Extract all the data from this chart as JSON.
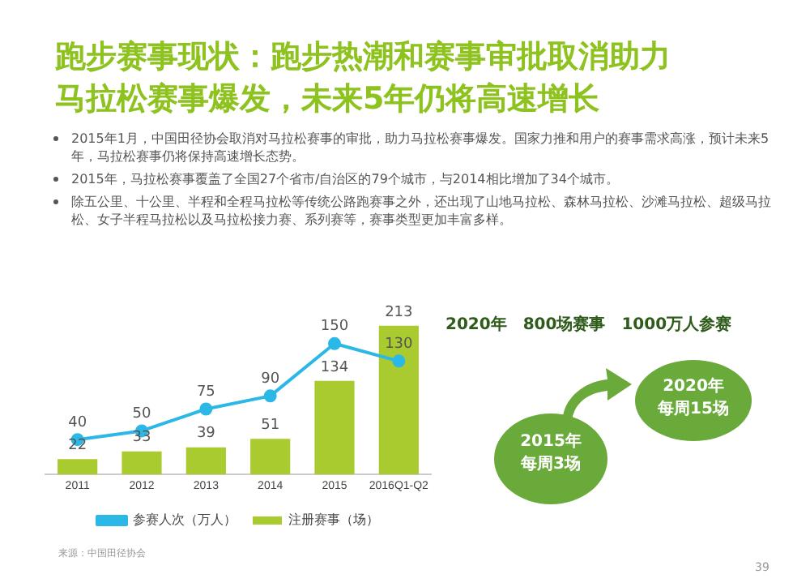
{
  "chart_data": {
    "type": "bar",
    "title": "跑步赛事现状：跑步热潮和赛事审批取消助力马拉松赛事爆发，未来5年仍将高速增长",
    "categories": [
      "2011",
      "2012",
      "2013",
      "2014",
      "2015",
      "2016Q1-Q2"
    ],
    "series": [
      {
        "name": "注册赛事（场）",
        "color": "#a9cb2f",
        "values": [
          22,
          33,
          39,
          51,
          134,
          213
        ]
      },
      {
        "name": "参赛人次（万人）",
        "type": "line",
        "axis": "y2",
        "color": "#2bb8e6",
        "values": [
          40,
          50,
          75,
          90,
          150,
          130
        ]
      }
    ],
    "tick_labels": "x",
    "grid": false,
    "legend": "bottom",
    "data_labels": true,
    "marker": "circle",
    "annotations": [
      "2015年1月，中国田径协会取消对马拉松赛事的审批，助力马拉松赛事爆发。国家力推和用户的赛事需求高涨，预计未来5年，马拉松赛事仍将保持高速增长态势。",
      "2015年，马拉松赛事覆盖了全国27个省市/自治区的79个城市，与2014相比增加了34个城市。",
      "除五公里、十公里、半程和全程马拉松等传统公路跑赛事之外，还出现了山地马拉松、森林马拉松、沙滩马拉松、超级马拉松、女子半程马拉松以及马拉松接力赛、系列赛等，赛事类型更加丰富多样。",
      "2020年　800场赛事　1000万人参赛",
      "来源：中国田径协会",
      "2015年每周3场",
      "2020年每周15场",
      "39"
    ]
  }
}
